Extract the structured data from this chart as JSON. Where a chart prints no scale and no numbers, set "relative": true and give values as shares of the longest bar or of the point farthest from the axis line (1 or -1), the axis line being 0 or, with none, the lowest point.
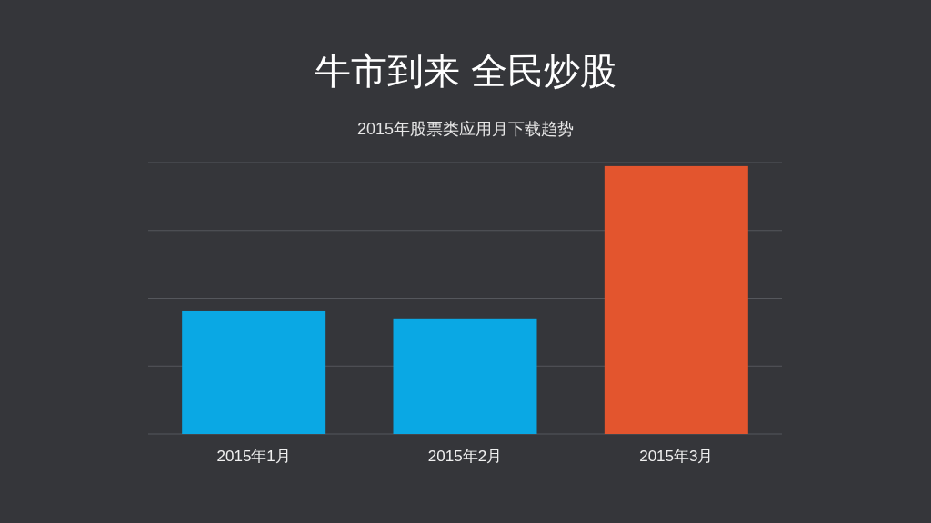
{
  "chart_data": {
    "type": "bar",
    "title": "牛市到来 全民炒股",
    "subtitle": "2015年股票类应用月下载趋势",
    "categories": [
      "2015年1月",
      "2015年2月",
      "2015年3月"
    ],
    "values": [
      0.461,
      0.431,
      1
    ],
    "colors": [
      "#0aa8e4",
      "#0aa8e4",
      "#e3552e"
    ],
    "relative": true,
    "grid": "y"
  }
}
